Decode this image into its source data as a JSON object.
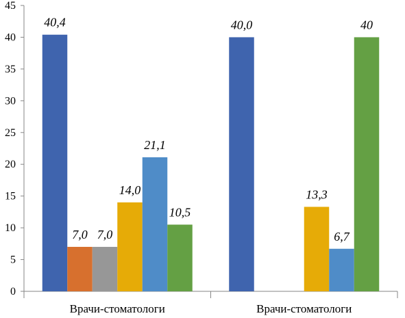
{
  "chart_data": {
    "type": "bar",
    "categories": [
      "Врачи-стоматологи",
      "Врачи-стоматологи"
    ],
    "series": [
      {
        "color": "#3F64AE",
        "values": [
          40.4,
          40.0
        ],
        "labels": [
          "40,4",
          "40,0"
        ]
      },
      {
        "color": "#D7702E",
        "values": [
          7.0,
          null
        ],
        "labels": [
          "7,0",
          null
        ]
      },
      {
        "color": "#979797",
        "values": [
          7.0,
          null
        ],
        "labels": [
          "7,0",
          null
        ]
      },
      {
        "color": "#E6AB07",
        "values": [
          14.0,
          13.3
        ],
        "labels": [
          "14,0",
          "13,3"
        ]
      },
      {
        "color": "#4F8CC8",
        "values": [
          21.1,
          6.7
        ],
        "labels": [
          "21,1",
          "6,7"
        ]
      },
      {
        "color": "#64A044",
        "values": [
          10.5,
          40
        ],
        "labels": [
          "10,5",
          "40"
        ]
      }
    ],
    "yticks": [
      "0",
      "5",
      "10",
      "15",
      "20",
      "25",
      "30",
      "35",
      "40",
      "45"
    ],
    "ylim": [
      0,
      45
    ],
    "grid": false,
    "legend": "none"
  }
}
